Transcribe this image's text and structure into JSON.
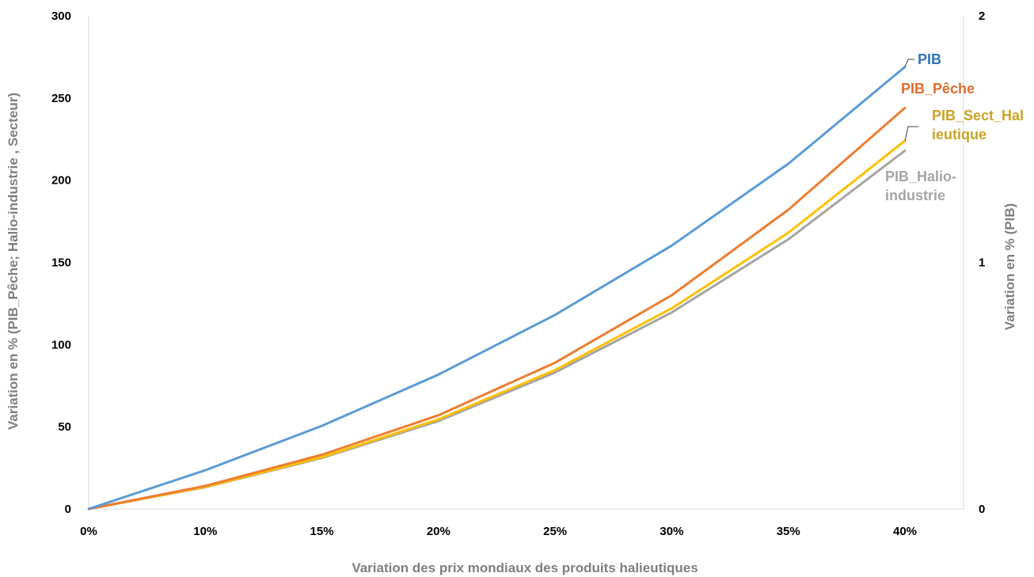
{
  "chart_data": {
    "type": "line",
    "title": "",
    "xlabel": "Variation des prix mondiaux des produits halieutiques",
    "ylabel": "Variation en % (PIB_Pêche; Halio-industrie , Secteur)",
    "y2label": "Variation en % (PIB)",
    "categories": [
      "0%",
      "10%",
      "15%",
      "20%",
      "25%",
      "30%",
      "35%",
      "40%"
    ],
    "ylim": [
      0,
      300
    ],
    "yticks": [
      "0",
      "50",
      "100",
      "150",
      "200",
      "250",
      "300"
    ],
    "y2lim": [
      0,
      2
    ],
    "y2ticks": [
      "0",
      "1",
      "2"
    ],
    "grid": false,
    "legend": "inline labels at line ends",
    "series": [
      {
        "name": "PIB",
        "axis": "right",
        "color": "#5b9bd5",
        "label_color": "#2e75b6",
        "values": [
          0,
          0.157,
          0.337,
          0.545,
          0.787,
          1.068,
          1.4,
          1.793
        ],
        "label_lines": [
          "PIB"
        ]
      },
      {
        "name": "PIB_Pêche",
        "axis": "left",
        "color": "#ed7d31",
        "label_color": "#e06c2b",
        "values": [
          0,
          14,
          33,
          57,
          89,
          130,
          182,
          244
        ],
        "label_lines": [
          "PIB_Pêche"
        ]
      },
      {
        "name": "PIB_Sect_Halieutique",
        "axis": "left",
        "color": "#ffc000",
        "label_color": "#c9a227",
        "values": [
          0,
          13.5,
          31.5,
          54.5,
          84.5,
          122,
          168,
          224
        ],
        "label_lines": [
          "PIB_Sect_Hal",
          "ieutique"
        ]
      },
      {
        "name": "PIB_Halio-industrie",
        "axis": "left",
        "color": "#a5a5a5",
        "label_color": "#a5a5a5",
        "values": [
          0,
          13.2,
          31,
          53.5,
          83,
          119.5,
          164,
          218
        ],
        "label_lines": [
          "PIB_Halio-",
          "industrie"
        ]
      }
    ]
  }
}
